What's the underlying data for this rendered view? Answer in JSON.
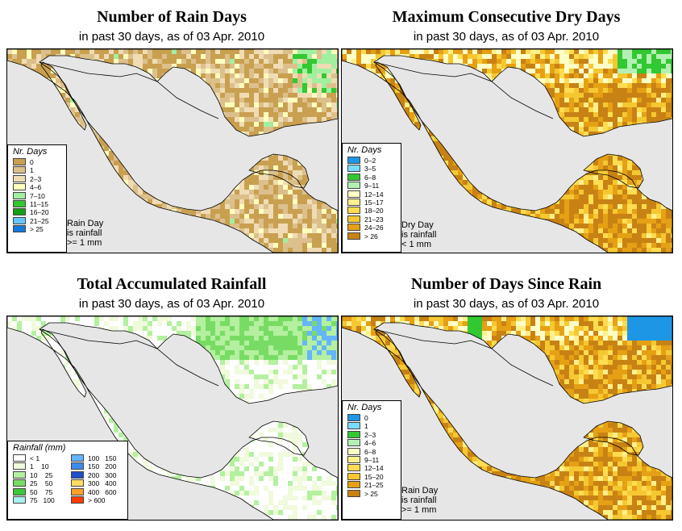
{
  "panels": [
    {
      "id": "rain-days",
      "title": "Number of Rain Days",
      "subtitle": "in past 30 days, as of  03 Apr. 2010",
      "legend_title": "Nr. Days",
      "legend": [
        {
          "label": "0",
          "color": "#c8a050"
        },
        {
          "label": "1",
          "color": "#dcc08c"
        },
        {
          "label": "2–3",
          "color": "#f0dcb4"
        },
        {
          "label": "4–6",
          "color": "#ffffbe"
        },
        {
          "label": "7–10",
          "color": "#a0f0a0"
        },
        {
          "label": "11–15",
          "color": "#32c832"
        },
        {
          "label": "16–20",
          "color": "#14a014"
        },
        {
          "label": "21–25",
          "color": "#64c8ff"
        },
        {
          "label": "> 25",
          "color": "#1478dc"
        }
      ],
      "note": [
        "Rain Day",
        "is rainfall",
        ">= 1 mm"
      ]
    },
    {
      "id": "max-dry-days",
      "title": "Maximum Consecutive Dry Days",
      "subtitle": "in past 30 days, as of  03 Apr. 2010",
      "legend_title": "Nr. Days",
      "legend": [
        {
          "label": "0–2",
          "color": "#1e96e6"
        },
        {
          "label": "3–5",
          "color": "#78dcff"
        },
        {
          "label": "6–8",
          "color": "#32c832"
        },
        {
          "label": "9–11",
          "color": "#b4f0b4"
        },
        {
          "label": "12–14",
          "color": "#ffffc8"
        },
        {
          "label": "15–17",
          "color": "#fff08c"
        },
        {
          "label": "18–20",
          "color": "#ffdc50"
        },
        {
          "label": "21–23",
          "color": "#f5c832"
        },
        {
          "label": "24–26",
          "color": "#e6a014"
        },
        {
          "label": "> 26",
          "color": "#c88214"
        }
      ],
      "note": [
        "Dry Day",
        "is rainfall",
        "< 1 mm"
      ]
    },
    {
      "id": "total-rainfall",
      "title": "Total Accumulated Rainfall",
      "subtitle": "in past 30 days, as of  03 Apr. 2010",
      "legend_title": "Rainfall (mm)",
      "legend_left": [
        {
          "label": "< 1",
          "color": "#ffffff"
        },
        {
          "label": "1    10",
          "color": "#f0fadc"
        },
        {
          "label": "10    25",
          "color": "#b4f0a0"
        },
        {
          "label": "25    50",
          "color": "#78dc64"
        },
        {
          "label": "50    75",
          "color": "#3cc83c"
        },
        {
          "label": "75   100",
          "color": "#aaf0f0"
        }
      ],
      "legend_right": [
        {
          "label": "100   150",
          "color": "#64b4ff"
        },
        {
          "label": "150   200",
          "color": "#3c8cf0"
        },
        {
          "label": "200   300",
          "color": "#1e50c8"
        },
        {
          "label": "300   400",
          "color": "#ffdc64"
        },
        {
          "label": "400   600",
          "color": "#ffa028"
        },
        {
          "label": "> 600",
          "color": "#ff3c00"
        }
      ]
    },
    {
      "id": "days-since-rain",
      "title": "Number of Days Since Rain",
      "subtitle": "in past 30 days, as of  03 Apr. 2010",
      "legend_title": "Nr. Days",
      "legend": [
        {
          "label": "0",
          "color": "#1e96e6"
        },
        {
          "label": "1",
          "color": "#78dcff"
        },
        {
          "label": "2–3",
          "color": "#32c832"
        },
        {
          "label": "4–6",
          "color": "#b4f0b4"
        },
        {
          "label": "6–8",
          "color": "#ffffc8"
        },
        {
          "label": "9–11",
          "color": "#fff08c"
        },
        {
          "label": "12–14",
          "color": "#ffdc50"
        },
        {
          "label": "15–20",
          "color": "#f5c832"
        },
        {
          "label": "21–25",
          "color": "#e6a014"
        },
        {
          "label": "> 25",
          "color": "#c88214"
        }
      ],
      "note": [
        "Rain Day",
        "is rainfall",
        ">= 1 mm"
      ]
    }
  ],
  "colors": {
    "sea": "#e6e6e6",
    "border": "#000000"
  }
}
